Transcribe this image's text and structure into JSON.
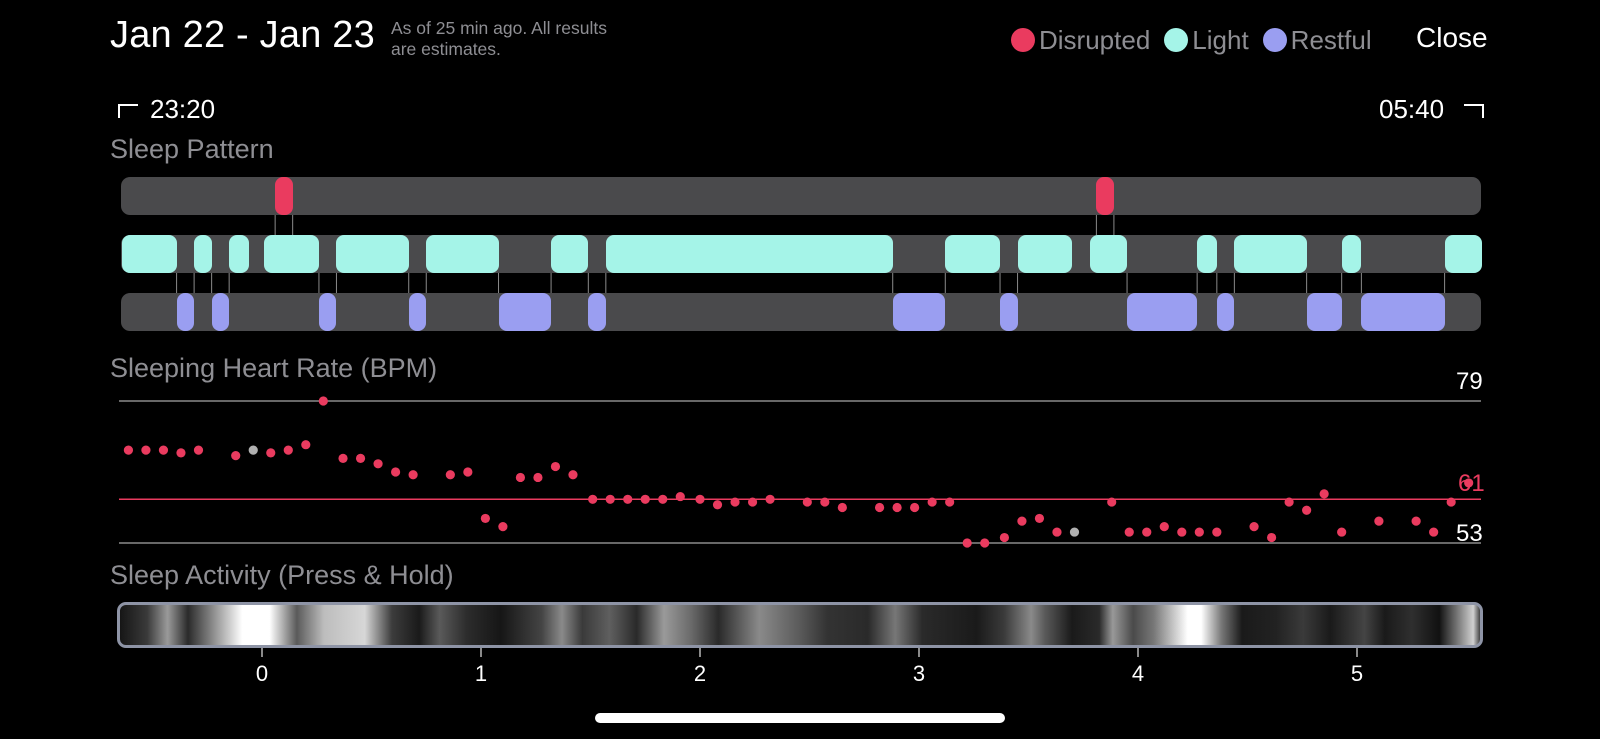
{
  "header": {
    "date_range": "Jan 22 - Jan 23",
    "subtitle_line1": "As of 25 min ago. All results",
    "subtitle_line2": "are estimates.",
    "close_label": "Close"
  },
  "legend": [
    {
      "label": "Disrupted",
      "color": "#ea3b5f"
    },
    {
      "label": "Light",
      "color": "#a5f4e8"
    },
    {
      "label": "Restful",
      "color": "#9a9ef1"
    }
  ],
  "time_range": {
    "start": "23:20",
    "end": "05:40"
  },
  "sections": {
    "sleep_pattern": "Sleep Pattern",
    "heart_rate": "Sleeping Heart Rate (BPM)",
    "activity": "Sleep Activity (Press & Hold)"
  },
  "chart_data": [
    {
      "type": "timeline",
      "title": "Sleep Pattern",
      "x_range_hours": [
        -0.65,
        5.57
      ],
      "stages": {
        "Disrupted": [
          [
            0.06,
            0.14
          ],
          [
            3.81,
            3.89
          ]
        ],
        "Light": [
          [
            -0.64,
            -0.39
          ],
          [
            -0.31,
            -0.23
          ],
          [
            -0.15,
            -0.06
          ],
          [
            0.01,
            0.26
          ],
          [
            0.34,
            0.67
          ],
          [
            0.75,
            1.08
          ],
          [
            1.32,
            1.49
          ],
          [
            1.57,
            2.88
          ],
          [
            3.12,
            3.37
          ],
          [
            3.45,
            3.7
          ],
          [
            3.78,
            3.95
          ],
          [
            4.27,
            4.36
          ],
          [
            4.44,
            4.77
          ],
          [
            4.93,
            5.02
          ],
          [
            5.4,
            5.57
          ]
        ],
        "Restful": [
          [
            -0.39,
            -0.31
          ],
          [
            -0.23,
            -0.15
          ],
          [
            0.26,
            0.34
          ],
          [
            0.67,
            0.75
          ],
          [
            1.08,
            1.32
          ],
          [
            1.49,
            1.57
          ],
          [
            2.88,
            3.12
          ],
          [
            3.37,
            3.45
          ],
          [
            3.95,
            4.27
          ],
          [
            4.36,
            4.44
          ],
          [
            4.77,
            4.93
          ],
          [
            5.02,
            5.4
          ]
        ]
      }
    },
    {
      "type": "scatter",
      "title": "Sleeping Heart Rate (BPM)",
      "y_ref_lines": {
        "max": 79,
        "avg": 61,
        "min": 53
      },
      "y_range": [
        53,
        79
      ],
      "gray_points": [
        [
          -0.04,
          70
        ],
        [
          3.71,
          55
        ]
      ],
      "points": [
        [
          -0.61,
          70
        ],
        [
          -0.53,
          70
        ],
        [
          -0.45,
          70
        ],
        [
          -0.37,
          69.5
        ],
        [
          -0.29,
          70
        ],
        [
          -0.12,
          69
        ],
        [
          0.04,
          69.5
        ],
        [
          0.12,
          70
        ],
        [
          0.2,
          71
        ],
        [
          0.28,
          79
        ],
        [
          0.37,
          68.5
        ],
        [
          0.45,
          68.5
        ],
        [
          0.53,
          67.5
        ],
        [
          0.61,
          66
        ],
        [
          0.69,
          65.5
        ],
        [
          0.86,
          65.5
        ],
        [
          0.94,
          66
        ],
        [
          1.02,
          57.5
        ],
        [
          1.1,
          56
        ],
        [
          1.18,
          65
        ],
        [
          1.26,
          65
        ],
        [
          1.34,
          67
        ],
        [
          1.42,
          65.5
        ],
        [
          1.51,
          61
        ],
        [
          1.59,
          61
        ],
        [
          1.67,
          61
        ],
        [
          1.75,
          61
        ],
        [
          1.83,
          61
        ],
        [
          1.91,
          61.5
        ],
        [
          2.0,
          61
        ],
        [
          2.08,
          60
        ],
        [
          2.16,
          60.5
        ],
        [
          2.24,
          60.5
        ],
        [
          2.32,
          61
        ],
        [
          2.49,
          60.5
        ],
        [
          2.57,
          60.5
        ],
        [
          2.65,
          59.5
        ],
        [
          2.82,
          59.5
        ],
        [
          2.9,
          59.5
        ],
        [
          2.98,
          59.5
        ],
        [
          3.06,
          60.5
        ],
        [
          3.14,
          60.5
        ],
        [
          3.22,
          53
        ],
        [
          3.3,
          53
        ],
        [
          3.39,
          54
        ],
        [
          3.47,
          57
        ],
        [
          3.55,
          57.5
        ],
        [
          3.63,
          55
        ],
        [
          3.88,
          60.5
        ],
        [
          3.96,
          55
        ],
        [
          4.04,
          55
        ],
        [
          4.12,
          56
        ],
        [
          4.2,
          55
        ],
        [
          4.28,
          55
        ],
        [
          4.36,
          55
        ],
        [
          4.53,
          56
        ],
        [
          4.61,
          54
        ],
        [
          4.69,
          60.5
        ],
        [
          4.77,
          59
        ],
        [
          4.85,
          62
        ],
        [
          4.93,
          55
        ],
        [
          5.1,
          57
        ],
        [
          5.27,
          57
        ],
        [
          5.35,
          55
        ],
        [
          5.43,
          60.5
        ],
        [
          5.51,
          64
        ]
      ]
    },
    {
      "type": "heatmap",
      "title": "Sleep Activity (Press & Hold)",
      "xlabel": "",
      "x_ticks": [
        "0",
        "1",
        "2",
        "3",
        "4",
        "5"
      ],
      "x_tick_values": [
        0,
        1,
        2,
        3,
        4,
        5
      ]
    }
  ]
}
